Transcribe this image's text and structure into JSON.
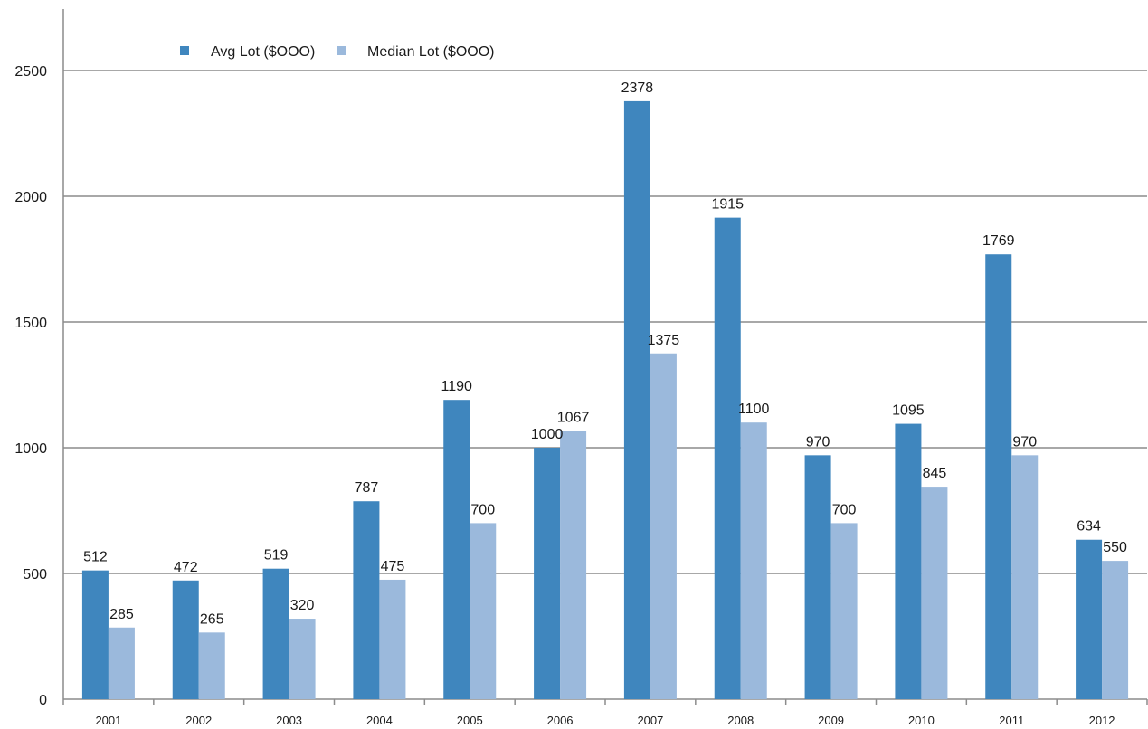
{
  "chart_data": {
    "type": "bar",
    "title": "",
    "xlabel": "",
    "ylabel": "",
    "categories": [
      "2001",
      "2002",
      "2003",
      "2004",
      "2005",
      "2006",
      "2007",
      "2008",
      "2009",
      "2010",
      "2011",
      "2012"
    ],
    "series": [
      {
        "name": "Avg Lot ($OOO)",
        "color": "#3f86be",
        "values": [
          512,
          472,
          519,
          787,
          1190,
          1000,
          2378,
          1915,
          970,
          1095,
          1769,
          634
        ]
      },
      {
        "name": "Median Lot ($OOO)",
        "color": "#9bb9dc",
        "values": [
          285,
          265,
          320,
          475,
          700,
          1067,
          1375,
          1100,
          700,
          845,
          970,
          550
        ]
      }
    ],
    "ylim": [
      0,
      2500
    ],
    "yticks": [
      0,
      500,
      1000,
      1500,
      2000,
      2500
    ],
    "grid": true,
    "legend_position": "top-left",
    "data_labels": true
  }
}
